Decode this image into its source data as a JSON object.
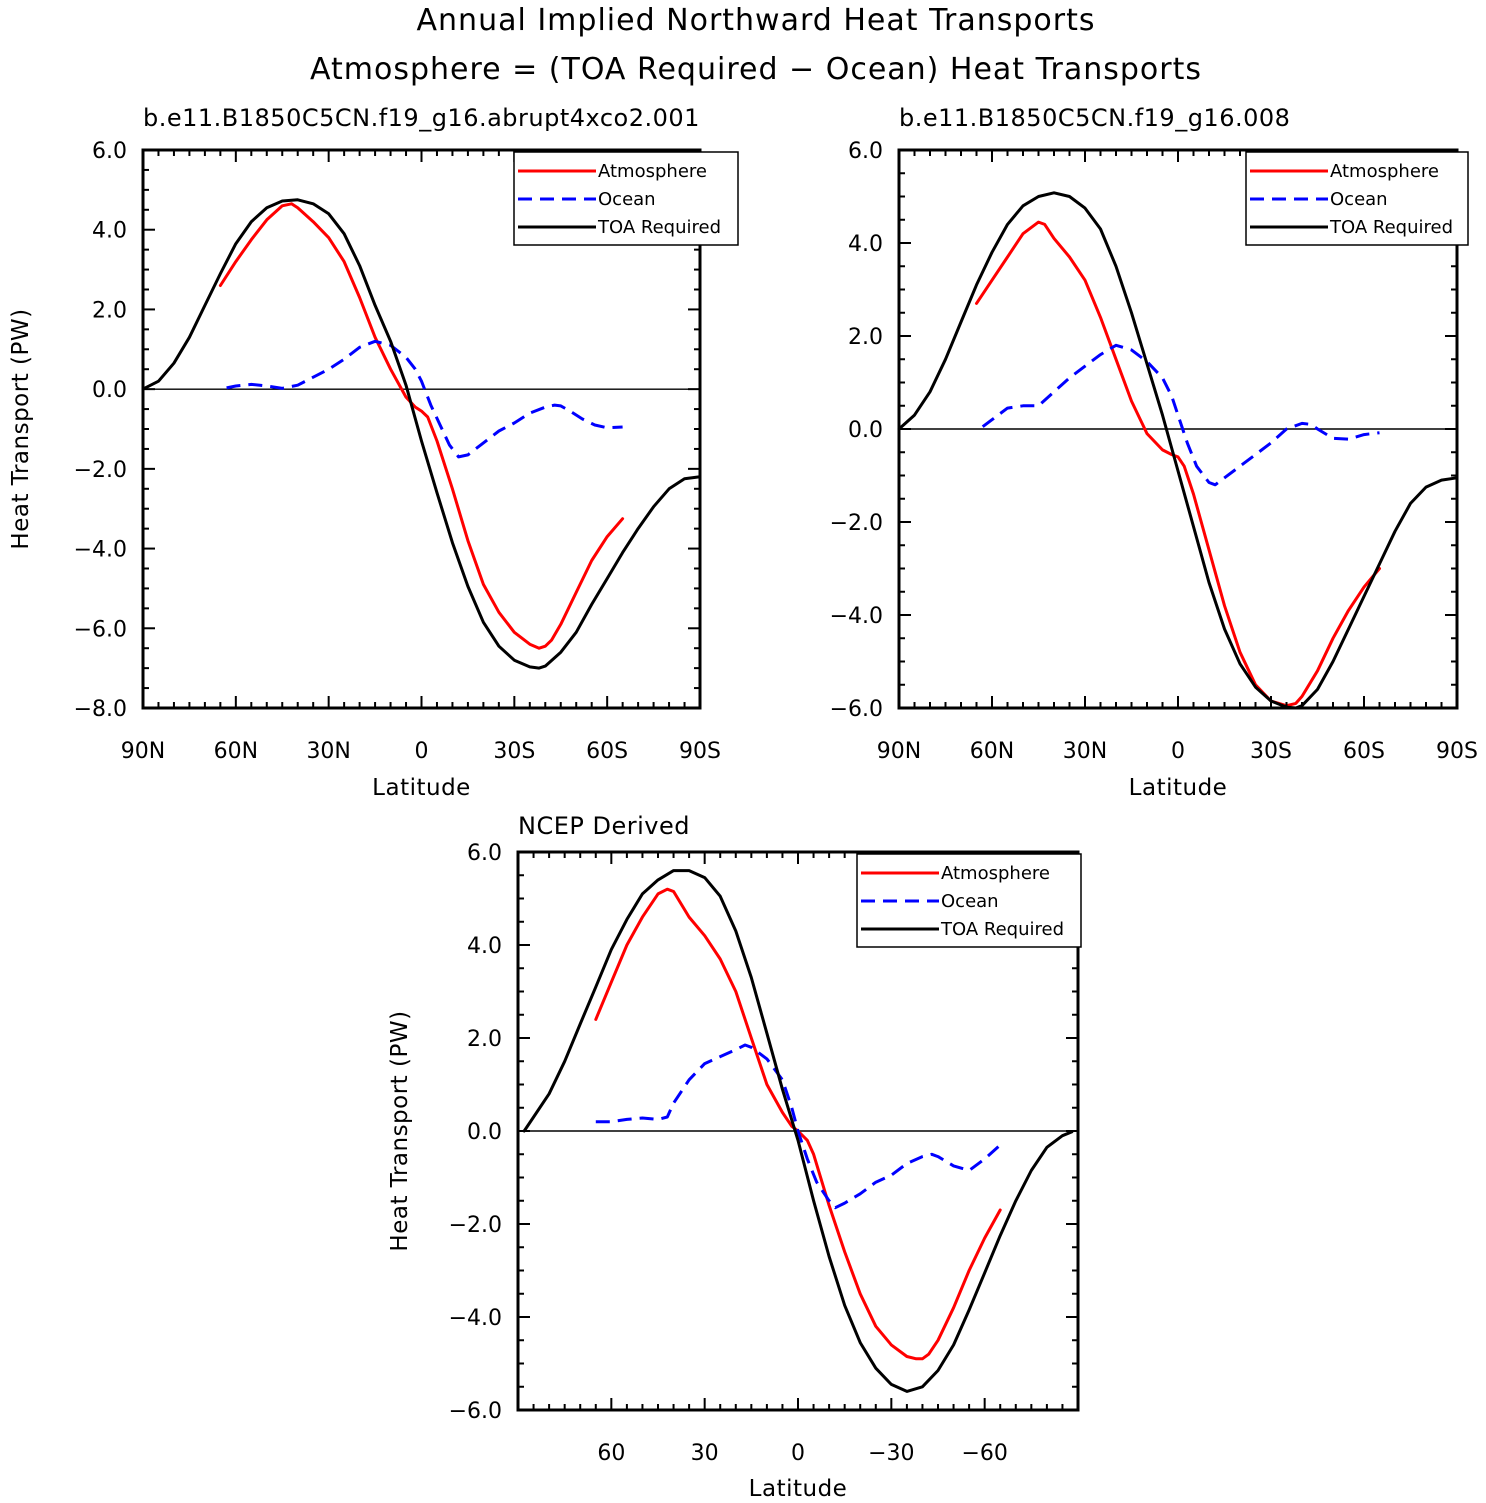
{
  "figure": {
    "title_line1": "Annual Implied Northward Heat Transports",
    "title_line2": "Atmosphere = (TOA Required − Ocean) Heat Transports"
  },
  "colors": {
    "atmosphere": "#ff0000",
    "ocean": "#0000ff",
    "toa": "#000000"
  },
  "chart_data": [
    {
      "type": "line",
      "title": "b.e11.B1850C5CN.f19_g16.abrupt4xco2.001",
      "xlabel": "Latitude",
      "ylabel": "Heat Transport (PW)",
      "xlim": [
        90,
        -90
      ],
      "ylim": [
        -8,
        6
      ],
      "xticks": [
        90,
        60,
        30,
        0,
        -30,
        -60,
        -90
      ],
      "xtick_labels": [
        "90N",
        "60N",
        "30N",
        "0",
        "30S",
        "60S",
        "90S"
      ],
      "yticks": [
        6,
        4,
        2,
        0,
        -2,
        -4,
        -6,
        -8
      ],
      "ytick_labels": [
        "6.0",
        "4.0",
        "2.0",
        "0.0",
        "−2.0",
        "−4.0",
        "−6.0",
        "−8.0"
      ],
      "legend": {
        "position": "top-right",
        "entries": [
          "Atmosphere",
          "Ocean",
          "TOA Required"
        ]
      },
      "series": [
        {
          "name": "Atmosphere",
          "style": "solid",
          "color": "#ff0000",
          "x": [
            65,
            60,
            55,
            50,
            45,
            42,
            40,
            35,
            30,
            25,
            20,
            15,
            10,
            5,
            2,
            0,
            -2,
            -5,
            -10,
            -15,
            -20,
            -25,
            -30,
            -35,
            -38,
            -40,
            -42,
            -45,
            -50,
            -55,
            -60,
            -65
          ],
          "y": [
            2.6,
            3.2,
            3.75,
            4.25,
            4.6,
            4.65,
            4.55,
            4.2,
            3.8,
            3.2,
            2.3,
            1.3,
            0.5,
            -0.2,
            -0.45,
            -0.55,
            -0.7,
            -1.3,
            -2.5,
            -3.8,
            -4.9,
            -5.6,
            -6.1,
            -6.4,
            -6.5,
            -6.45,
            -6.3,
            -5.9,
            -5.1,
            -4.3,
            -3.7,
            -3.25
          ]
        },
        {
          "name": "Ocean",
          "style": "dashed",
          "color": "#0000ff",
          "x": [
            63,
            60,
            55,
            50,
            45,
            40,
            35,
            30,
            25,
            20,
            15,
            10,
            5,
            2,
            0,
            -3,
            -6,
            -9,
            -12,
            -15,
            -20,
            -25,
            -30,
            -35,
            -40,
            -43,
            -45,
            -48,
            -52,
            -56,
            -60,
            -65
          ],
          "y": [
            0.03,
            0.08,
            0.12,
            0.08,
            0.02,
            0.1,
            0.3,
            0.5,
            0.75,
            1.05,
            1.2,
            1.1,
            0.8,
            0.5,
            0.2,
            -0.4,
            -0.9,
            -1.4,
            -1.7,
            -1.65,
            -1.35,
            -1.05,
            -0.85,
            -0.6,
            -0.45,
            -0.4,
            -0.42,
            -0.55,
            -0.75,
            -0.9,
            -0.97,
            -0.95
          ]
        },
        {
          "name": "TOA Required",
          "style": "solid",
          "color": "#000000",
          "x": [
            90,
            85,
            80,
            75,
            70,
            65,
            60,
            55,
            50,
            45,
            40,
            35,
            30,
            25,
            20,
            15,
            10,
            5,
            0,
            -5,
            -10,
            -15,
            -20,
            -25,
            -30,
            -35,
            -38,
            -40,
            -45,
            -50,
            -55,
            -60,
            -65,
            -70,
            -75,
            -80,
            -85,
            -90
          ],
          "y": [
            0.0,
            0.2,
            0.65,
            1.3,
            2.1,
            2.9,
            3.65,
            4.2,
            4.55,
            4.72,
            4.75,
            4.65,
            4.4,
            3.9,
            3.1,
            2.1,
            1.2,
            0.1,
            -1.3,
            -2.6,
            -3.85,
            -4.95,
            -5.85,
            -6.45,
            -6.8,
            -6.97,
            -7.0,
            -6.95,
            -6.6,
            -6.1,
            -5.4,
            -4.75,
            -4.1,
            -3.5,
            -2.95,
            -2.5,
            -2.25,
            -2.2
          ]
        }
      ]
    },
    {
      "type": "line",
      "title": "b.e11.B1850C5CN.f19_g16.008",
      "xlabel": "Latitude",
      "ylabel": "",
      "xlim": [
        90,
        -90
      ],
      "ylim": [
        -6,
        6
      ],
      "xticks": [
        90,
        60,
        30,
        0,
        -30,
        -60,
        -90
      ],
      "xtick_labels": [
        "90N",
        "60N",
        "30N",
        "0",
        "30S",
        "60S",
        "90S"
      ],
      "yticks": [
        6,
        4,
        2,
        0,
        -2,
        -4,
        -6
      ],
      "ytick_labels": [
        "6.0",
        "4.0",
        "2.0",
        "0.0",
        "−2.0",
        "−4.0",
        "−6.0"
      ],
      "legend": {
        "position": "top-right",
        "entries": [
          "Atmosphere",
          "Ocean",
          "TOA Required"
        ]
      },
      "series": [
        {
          "name": "Atmosphere",
          "style": "solid",
          "color": "#ff0000",
          "x": [
            65,
            60,
            55,
            50,
            45,
            43,
            40,
            35,
            30,
            25,
            20,
            15,
            10,
            5,
            2,
            0,
            -2,
            -5,
            -10,
            -15,
            -20,
            -25,
            -30,
            -35,
            -38,
            -40,
            -45,
            -50,
            -55,
            -60,
            -65
          ],
          "y": [
            2.7,
            3.2,
            3.7,
            4.2,
            4.45,
            4.4,
            4.1,
            3.7,
            3.2,
            2.4,
            1.5,
            0.6,
            -0.1,
            -0.45,
            -0.55,
            -0.6,
            -0.8,
            -1.4,
            -2.6,
            -3.8,
            -4.8,
            -5.5,
            -5.85,
            -5.95,
            -5.9,
            -5.75,
            -5.2,
            -4.5,
            -3.9,
            -3.4,
            -3.0
          ]
        },
        {
          "name": "Ocean",
          "style": "dashed",
          "color": "#0000ff",
          "x": [
            63,
            60,
            55,
            50,
            45,
            40,
            35,
            30,
            25,
            20,
            15,
            10,
            5,
            2,
            0,
            -3,
            -6,
            -10,
            -12,
            -15,
            -20,
            -25,
            -30,
            -35,
            -40,
            -43,
            -45,
            -50,
            -55,
            -60,
            -65
          ],
          "y": [
            0.05,
            0.2,
            0.45,
            0.5,
            0.5,
            0.8,
            1.1,
            1.35,
            1.6,
            1.8,
            1.7,
            1.45,
            1.1,
            0.7,
            0.3,
            -0.3,
            -0.8,
            -1.15,
            -1.2,
            -1.05,
            -0.8,
            -0.55,
            -0.3,
            0.0,
            0.12,
            0.1,
            0.0,
            -0.2,
            -0.22,
            -0.12,
            -0.08
          ]
        },
        {
          "name": "TOA Required",
          "style": "solid",
          "color": "#000000",
          "x": [
            90,
            85,
            80,
            75,
            70,
            65,
            60,
            55,
            50,
            45,
            40,
            35,
            30,
            25,
            20,
            15,
            10,
            5,
            0,
            -5,
            -10,
            -15,
            -20,
            -25,
            -30,
            -35,
            -38,
            -40,
            -45,
            -50,
            -55,
            -60,
            -65,
            -70,
            -75,
            -80,
            -85,
            -90
          ],
          "y": [
            0.0,
            0.3,
            0.8,
            1.5,
            2.3,
            3.1,
            3.8,
            4.4,
            4.8,
            5.0,
            5.08,
            5.0,
            4.75,
            4.3,
            3.5,
            2.5,
            1.4,
            0.3,
            -0.9,
            -2.1,
            -3.3,
            -4.3,
            -5.05,
            -5.55,
            -5.85,
            -5.98,
            -6.0,
            -5.95,
            -5.6,
            -5.0,
            -4.3,
            -3.6,
            -2.9,
            -2.2,
            -1.6,
            -1.25,
            -1.1,
            -1.05
          ]
        }
      ]
    },
    {
      "type": "line",
      "title": "NCEP Derived",
      "xlabel": "Latitude",
      "ylabel": "Heat Transport (PW)",
      "xlim": [
        90,
        -90
      ],
      "ylim": [
        -6,
        6
      ],
      "xticks": [
        60,
        30,
        0,
        -30,
        -60
      ],
      "xtick_labels": [
        "60",
        "30",
        "0",
        "−30",
        "−60"
      ],
      "yticks": [
        6,
        4,
        2,
        0,
        -2,
        -4,
        -6
      ],
      "ytick_labels": [
        "6.0",
        "4.0",
        "2.0",
        "0.0",
        "−2.0",
        "−4.0",
        "−6.0"
      ],
      "legend": {
        "position": "top-right",
        "entries": [
          "Atmosphere",
          "Ocean",
          "TOA Required"
        ]
      },
      "series": [
        {
          "name": "Atmosphere",
          "style": "solid",
          "color": "#ff0000",
          "x": [
            65,
            60,
            55,
            50,
            45,
            42,
            40,
            35,
            30,
            25,
            20,
            15,
            10,
            5,
            2,
            0,
            -3,
            -5,
            -10,
            -15,
            -20,
            -25,
            -30,
            -35,
            -38,
            -40,
            -42,
            -45,
            -50,
            -55,
            -60,
            -65
          ],
          "y": [
            2.4,
            3.2,
            4.0,
            4.6,
            5.1,
            5.2,
            5.15,
            4.6,
            4.2,
            3.7,
            3.0,
            2.0,
            1.0,
            0.4,
            0.1,
            0.0,
            -0.2,
            -0.5,
            -1.6,
            -2.6,
            -3.5,
            -4.2,
            -4.6,
            -4.85,
            -4.9,
            -4.9,
            -4.8,
            -4.5,
            -3.8,
            -3.0,
            -2.3,
            -1.7
          ]
        },
        {
          "name": "Ocean",
          "style": "dashed",
          "color": "#0000ff",
          "x": [
            65,
            60,
            55,
            50,
            45,
            42,
            40,
            35,
            30,
            25,
            20,
            17,
            15,
            10,
            5,
            2,
            0,
            -3,
            -6,
            -10,
            -12,
            -15,
            -20,
            -25,
            -30,
            -35,
            -40,
            -43,
            -45,
            -50,
            -55,
            -60,
            -65
          ],
          "y": [
            0.2,
            0.2,
            0.25,
            0.28,
            0.25,
            0.3,
            0.6,
            1.1,
            1.45,
            1.6,
            1.75,
            1.85,
            1.8,
            1.55,
            1.1,
            0.5,
            0.0,
            -0.6,
            -1.1,
            -1.5,
            -1.65,
            -1.55,
            -1.35,
            -1.1,
            -0.95,
            -0.7,
            -0.55,
            -0.5,
            -0.55,
            -0.75,
            -0.85,
            -0.6,
            -0.3
          ]
        },
        {
          "name": "TOA Required",
          "style": "solid",
          "color": "#000000",
          "x": [
            88,
            85,
            80,
            75,
            70,
            65,
            60,
            55,
            50,
            45,
            40,
            35,
            30,
            25,
            20,
            15,
            10,
            5,
            0,
            -5,
            -10,
            -15,
            -20,
            -25,
            -30,
            -35,
            -40,
            -45,
            -50,
            -55,
            -60,
            -65,
            -70,
            -75,
            -80,
            -85,
            -88
          ],
          "y": [
            0.0,
            0.3,
            0.8,
            1.5,
            2.3,
            3.1,
            3.9,
            4.55,
            5.1,
            5.4,
            5.6,
            5.6,
            5.45,
            5.05,
            4.3,
            3.3,
            2.1,
            0.9,
            -0.2,
            -1.5,
            -2.7,
            -3.75,
            -4.55,
            -5.1,
            -5.45,
            -5.6,
            -5.5,
            -5.15,
            -4.6,
            -3.85,
            -3.05,
            -2.25,
            -1.5,
            -0.85,
            -0.35,
            -0.1,
            -0.02
          ]
        }
      ]
    }
  ]
}
